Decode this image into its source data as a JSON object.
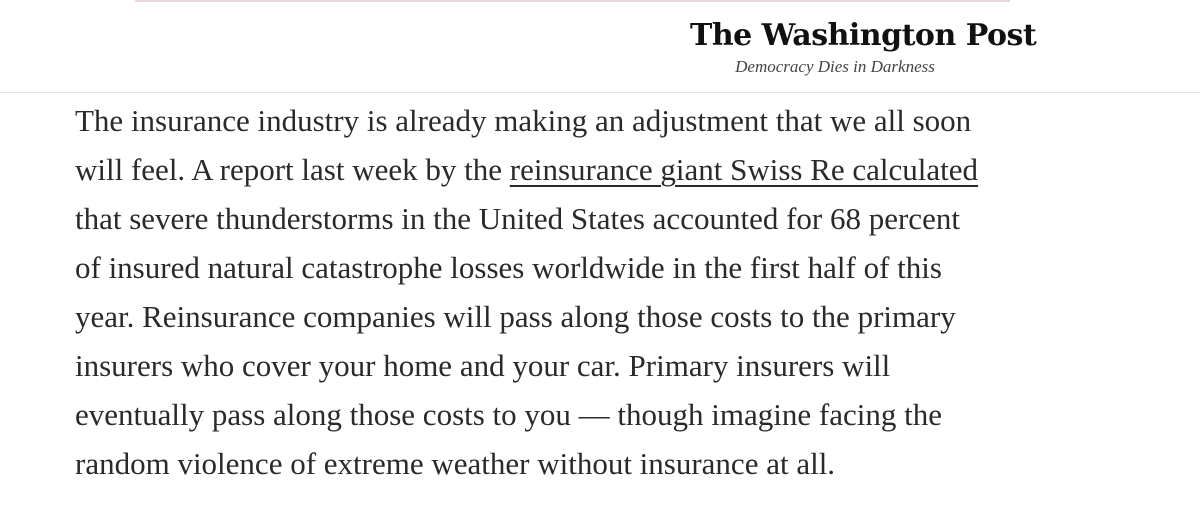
{
  "masthead": {
    "logo_text": "The Washington Post",
    "tagline": "Democracy Dies in Darkness"
  },
  "article": {
    "lines": [
      "The insurance industry is already making an adjustment that we all soon",
      "will feel. A report last week by the ",
      "that severe thunderstorms in the United States accounted for 68 percent",
      "of insured natural catastrophe losses worldwide in the first half of this",
      "year. Reinsurance companies will pass along those costs to the primary",
      "insurers who cover your home and your car. Primary insurers will",
      "eventually pass along those costs to you — though imagine facing the",
      "random violence of extreme weather without insurance at all."
    ],
    "link_text": "reinsurance giant Swiss Re calculated"
  }
}
